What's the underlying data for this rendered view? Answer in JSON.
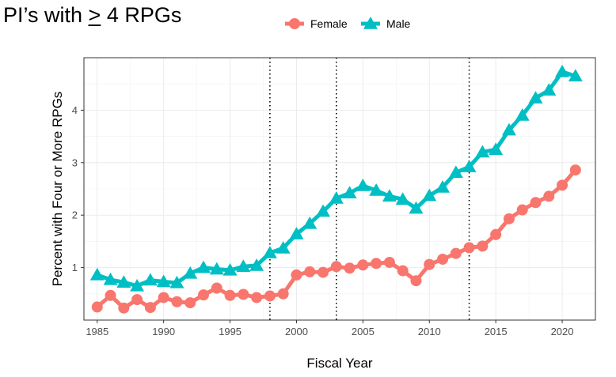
{
  "title_prefix": "PI’s with ",
  "title_symbol": ">",
  "title_suffix": " 4 RPGs",
  "chart_data": {
    "type": "line",
    "title": "PI’s with ≥ 4 RPGs",
    "xlabel": "Fiscal Year",
    "ylabel": "Percent with Four or More RPGs",
    "xlim": [
      1984,
      2022.5
    ],
    "ylim": [
      0,
      5
    ],
    "xticks": [
      1985,
      1990,
      1995,
      2000,
      2005,
      2010,
      2015,
      2020
    ],
    "yticks": [
      1,
      2,
      3,
      4
    ],
    "vlines": [
      1998,
      2003,
      2013
    ],
    "legend_position": "top-center",
    "grid": true,
    "x": [
      1985,
      1986,
      1987,
      1988,
      1989,
      1990,
      1991,
      1992,
      1993,
      1994,
      1995,
      1996,
      1997,
      1998,
      1999,
      2000,
      2001,
      2002,
      2003,
      2004,
      2005,
      2006,
      2007,
      2008,
      2009,
      2010,
      2011,
      2012,
      2013,
      2014,
      2015,
      2016,
      2017,
      2018,
      2019,
      2020,
      2021
    ],
    "series": [
      {
        "name": "Female",
        "color": "#f8766d",
        "marker": "circle",
        "values": [
          0.25,
          0.47,
          0.23,
          0.39,
          0.24,
          0.43,
          0.35,
          0.33,
          0.48,
          0.61,
          0.47,
          0.49,
          0.43,
          0.46,
          0.5,
          0.86,
          0.92,
          0.91,
          1.02,
          0.99,
          1.05,
          1.08,
          1.1,
          0.94,
          0.75,
          1.06,
          1.16,
          1.27,
          1.38,
          1.41,
          1.63,
          1.93,
          2.1,
          2.24,
          2.36,
          2.57,
          2.86
        ]
      },
      {
        "name": "Male",
        "color": "#00bfc4",
        "marker": "triangle",
        "values": [
          0.86,
          0.77,
          0.72,
          0.65,
          0.76,
          0.73,
          0.71,
          0.89,
          1.0,
          0.97,
          0.95,
          1.02,
          1.04,
          1.28,
          1.37,
          1.64,
          1.84,
          2.07,
          2.32,
          2.42,
          2.56,
          2.47,
          2.36,
          2.3,
          2.13,
          2.37,
          2.53,
          2.81,
          2.92,
          3.2,
          3.25,
          3.62,
          3.9,
          4.23,
          4.38,
          4.73,
          4.65
        ]
      }
    ]
  }
}
